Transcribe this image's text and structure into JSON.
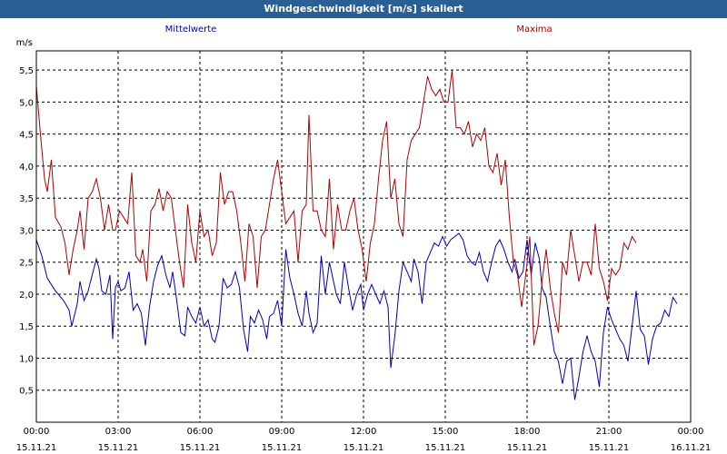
{
  "window": {
    "title": "Windgeschwindigkeit [m/s] skaliert"
  },
  "chart_data": {
    "type": "line",
    "ylabel": "m/s",
    "ylim": [
      0,
      5.8
    ],
    "y_ticks": [
      "0,5",
      "1,0",
      "1,5",
      "2,0",
      "2,5",
      "3,0",
      "3,5",
      "4,0",
      "4,5",
      "5,0",
      "5,5"
    ],
    "y_tick_values": [
      0.5,
      1.0,
      1.5,
      2.0,
      2.5,
      3.0,
      3.5,
      4.0,
      4.5,
      5.0,
      5.5
    ],
    "xlim_hours": [
      0,
      24
    ],
    "x_ticks": [
      {
        "time": "00:00",
        "date": "15.11.21"
      },
      {
        "time": "03:00",
        "date": "15.11.21"
      },
      {
        "time": "06:00",
        "date": "15.11.21"
      },
      {
        "time": "09:00",
        "date": "15.11.21"
      },
      {
        "time": "12:00",
        "date": "15.11.21"
      },
      {
        "time": "15:00",
        "date": "15.11.21"
      },
      {
        "time": "18:00",
        "date": "15.11.21"
      },
      {
        "time": "21:00",
        "date": "15.11.21"
      },
      {
        "time": "00:00",
        "date": "16.11.21"
      }
    ],
    "grid": true,
    "series": [
      {
        "name": "Mittelwerte",
        "color": "#0000c0",
        "points": [
          [
            0.0,
            2.85
          ],
          [
            0.2,
            2.6
          ],
          [
            0.4,
            2.25
          ],
          [
            0.7,
            2.05
          ],
          [
            1.0,
            1.9
          ],
          [
            1.2,
            1.75
          ],
          [
            1.3,
            1.5
          ],
          [
            1.5,
            1.85
          ],
          [
            1.6,
            2.2
          ],
          [
            1.75,
            1.9
          ],
          [
            1.9,
            2.05
          ],
          [
            2.05,
            2.3
          ],
          [
            2.2,
            2.55
          ],
          [
            2.3,
            2.4
          ],
          [
            2.4,
            2.05
          ],
          [
            2.55,
            2.0
          ],
          [
            2.7,
            2.3
          ],
          [
            2.8,
            1.3
          ],
          [
            2.9,
            2.1
          ],
          [
            3.0,
            2.2
          ],
          [
            3.1,
            2.05
          ],
          [
            3.25,
            2.1
          ],
          [
            3.4,
            2.35
          ],
          [
            3.55,
            1.75
          ],
          [
            3.7,
            1.85
          ],
          [
            3.85,
            1.7
          ],
          [
            4.0,
            1.2
          ],
          [
            4.15,
            1.8
          ],
          [
            4.3,
            2.2
          ],
          [
            4.45,
            2.45
          ],
          [
            4.6,
            2.6
          ],
          [
            4.75,
            2.3
          ],
          [
            4.9,
            2.1
          ],
          [
            5.0,
            2.35
          ],
          [
            5.15,
            1.9
          ],
          [
            5.3,
            1.4
          ],
          [
            5.45,
            1.35
          ],
          [
            5.55,
            1.8
          ],
          [
            5.7,
            1.65
          ],
          [
            5.85,
            1.55
          ],
          [
            6.0,
            1.8
          ],
          [
            6.15,
            1.5
          ],
          [
            6.3,
            1.6
          ],
          [
            6.45,
            1.3
          ],
          [
            6.55,
            1.25
          ],
          [
            6.7,
            1.5
          ],
          [
            6.85,
            2.25
          ],
          [
            7.0,
            2.1
          ],
          [
            7.15,
            2.15
          ],
          [
            7.3,
            2.35
          ],
          [
            7.45,
            2.1
          ],
          [
            7.6,
            1.45
          ],
          [
            7.75,
            1.1
          ],
          [
            7.85,
            1.65
          ],
          [
            8.0,
            1.55
          ],
          [
            8.15,
            1.75
          ],
          [
            8.3,
            1.6
          ],
          [
            8.45,
            1.3
          ],
          [
            8.55,
            1.65
          ],
          [
            8.7,
            1.7
          ],
          [
            8.85,
            1.9
          ],
          [
            9.0,
            1.5
          ],
          [
            9.15,
            2.7
          ],
          [
            9.3,
            2.25
          ],
          [
            9.45,
            2.0
          ],
          [
            9.6,
            1.7
          ],
          [
            9.75,
            1.5
          ],
          [
            9.9,
            2.05
          ],
          [
            10.0,
            1.7
          ],
          [
            10.15,
            1.4
          ],
          [
            10.3,
            1.55
          ],
          [
            10.45,
            2.6
          ],
          [
            10.6,
            2.0
          ],
          [
            10.75,
            2.5
          ],
          [
            10.9,
            2.2
          ],
          [
            11.0,
            2.0
          ],
          [
            11.15,
            1.85
          ],
          [
            11.3,
            2.5
          ],
          [
            11.45,
            2.1
          ],
          [
            11.6,
            1.75
          ],
          [
            11.75,
            2.0
          ],
          [
            11.9,
            2.15
          ],
          [
            12.0,
            1.75
          ],
          [
            12.15,
            2.0
          ],
          [
            12.3,
            2.15
          ],
          [
            12.45,
            2.0
          ],
          [
            12.6,
            1.85
          ],
          [
            12.75,
            2.05
          ],
          [
            12.9,
            1.8
          ],
          [
            13.0,
            0.85
          ],
          [
            13.15,
            1.35
          ],
          [
            13.3,
            2.05
          ],
          [
            13.45,
            2.5
          ],
          [
            13.6,
            2.35
          ],
          [
            13.75,
            2.2
          ],
          [
            13.85,
            2.55
          ],
          [
            14.0,
            2.35
          ],
          [
            14.15,
            1.85
          ],
          [
            14.3,
            2.5
          ],
          [
            14.45,
            2.65
          ],
          [
            14.6,
            2.8
          ],
          [
            14.75,
            2.75
          ],
          [
            14.9,
            2.9
          ],
          [
            15.05,
            2.75
          ],
          [
            15.2,
            2.85
          ],
          [
            15.35,
            2.9
          ],
          [
            15.5,
            2.95
          ],
          [
            15.65,
            2.85
          ],
          [
            15.8,
            2.6
          ],
          [
            15.95,
            2.5
          ],
          [
            16.1,
            2.45
          ],
          [
            16.25,
            2.65
          ],
          [
            16.4,
            2.35
          ],
          [
            16.55,
            2.2
          ],
          [
            16.7,
            2.5
          ],
          [
            16.85,
            2.75
          ],
          [
            17.0,
            2.85
          ],
          [
            17.15,
            2.7
          ],
          [
            17.3,
            2.5
          ],
          [
            17.45,
            2.35
          ],
          [
            17.55,
            2.55
          ],
          [
            17.7,
            2.25
          ],
          [
            17.85,
            2.35
          ],
          [
            18.0,
            2.85
          ],
          [
            18.15,
            2.3
          ],
          [
            18.3,
            2.8
          ],
          [
            18.45,
            2.55
          ],
          [
            18.55,
            2.1
          ],
          [
            18.7,
            1.95
          ],
          [
            18.85,
            1.5
          ],
          [
            19.0,
            1.1
          ],
          [
            19.15,
            0.95
          ],
          [
            19.3,
            0.6
          ],
          [
            19.45,
            0.95
          ],
          [
            19.6,
            1.0
          ],
          [
            19.75,
            0.35
          ],
          [
            19.9,
            0.7
          ],
          [
            20.05,
            1.1
          ],
          [
            20.2,
            1.35
          ],
          [
            20.35,
            1.1
          ],
          [
            20.5,
            0.95
          ],
          [
            20.65,
            0.55
          ],
          [
            20.8,
            1.4
          ],
          [
            20.95,
            1.8
          ],
          [
            21.1,
            1.6
          ],
          [
            21.25,
            1.45
          ],
          [
            21.4,
            1.3
          ],
          [
            21.55,
            1.2
          ],
          [
            21.7,
            0.95
          ],
          [
            21.85,
            1.5
          ],
          [
            22.0,
            2.05
          ],
          [
            22.15,
            1.45
          ],
          [
            22.3,
            1.35
          ],
          [
            22.45,
            0.9
          ],
          [
            22.6,
            1.3
          ],
          [
            22.75,
            1.5
          ],
          [
            22.9,
            1.55
          ],
          [
            23.05,
            1.75
          ],
          [
            23.2,
            1.65
          ],
          [
            23.35,
            1.95
          ],
          [
            23.5,
            1.85
          ]
        ]
      },
      {
        "name": "Maxima",
        "color": "#b00000",
        "points": [
          [
            0.0,
            5.25
          ],
          [
            0.15,
            4.5
          ],
          [
            0.3,
            3.8
          ],
          [
            0.4,
            3.6
          ],
          [
            0.55,
            4.1
          ],
          [
            0.7,
            3.2
          ],
          [
            0.9,
            3.05
          ],
          [
            1.05,
            2.8
          ],
          [
            1.2,
            2.3
          ],
          [
            1.35,
            2.7
          ],
          [
            1.5,
            3.0
          ],
          [
            1.6,
            3.3
          ],
          [
            1.75,
            2.7
          ],
          [
            1.9,
            3.5
          ],
          [
            2.05,
            3.6
          ],
          [
            2.2,
            3.8
          ],
          [
            2.35,
            3.5
          ],
          [
            2.5,
            3.0
          ],
          [
            2.65,
            3.4
          ],
          [
            2.8,
            3.0
          ],
          [
            2.9,
            3.0
          ],
          [
            3.05,
            3.3
          ],
          [
            3.2,
            3.2
          ],
          [
            3.35,
            3.1
          ],
          [
            3.5,
            3.9
          ],
          [
            3.65,
            2.6
          ],
          [
            3.8,
            2.5
          ],
          [
            3.9,
            2.7
          ],
          [
            4.05,
            2.2
          ],
          [
            4.2,
            3.3
          ],
          [
            4.35,
            3.4
          ],
          [
            4.5,
            3.65
          ],
          [
            4.65,
            3.3
          ],
          [
            4.8,
            3.6
          ],
          [
            4.95,
            3.5
          ],
          [
            5.1,
            3.0
          ],
          [
            5.25,
            2.5
          ],
          [
            5.4,
            2.1
          ],
          [
            5.55,
            3.4
          ],
          [
            5.7,
            2.8
          ],
          [
            5.85,
            2.5
          ],
          [
            6.0,
            3.3
          ],
          [
            6.15,
            2.9
          ],
          [
            6.3,
            3.0
          ],
          [
            6.45,
            2.6
          ],
          [
            6.6,
            2.8
          ],
          [
            6.75,
            3.9
          ],
          [
            6.9,
            3.4
          ],
          [
            7.05,
            3.6
          ],
          [
            7.2,
            3.6
          ],
          [
            7.35,
            3.3
          ],
          [
            7.5,
            2.8
          ],
          [
            7.65,
            2.2
          ],
          [
            7.8,
            3.1
          ],
          [
            7.95,
            2.9
          ],
          [
            8.1,
            2.1
          ],
          [
            8.25,
            2.9
          ],
          [
            8.4,
            3.0
          ],
          [
            8.55,
            3.4
          ],
          [
            8.7,
            3.8
          ],
          [
            8.85,
            4.1
          ],
          [
            9.0,
            3.6
          ],
          [
            9.15,
            3.1
          ],
          [
            9.3,
            3.2
          ],
          [
            9.45,
            3.3
          ],
          [
            9.6,
            2.5
          ],
          [
            9.75,
            3.3
          ],
          [
            9.9,
            3.4
          ],
          [
            10.0,
            4.8
          ],
          [
            10.15,
            3.3
          ],
          [
            10.3,
            3.3
          ],
          [
            10.45,
            3.0
          ],
          [
            10.6,
            2.9
          ],
          [
            10.75,
            3.8
          ],
          [
            10.9,
            2.7
          ],
          [
            11.05,
            3.4
          ],
          [
            11.2,
            3.0
          ],
          [
            11.35,
            3.0
          ],
          [
            11.5,
            3.3
          ],
          [
            11.65,
            3.5
          ],
          [
            11.8,
            3.0
          ],
          [
            11.95,
            2.7
          ],
          [
            12.1,
            2.2
          ],
          [
            12.25,
            2.8
          ],
          [
            12.4,
            3.1
          ],
          [
            12.55,
            3.8
          ],
          [
            12.7,
            4.4
          ],
          [
            12.85,
            4.7
          ],
          [
            13.0,
            3.5
          ],
          [
            13.15,
            3.8
          ],
          [
            13.3,
            3.1
          ],
          [
            13.45,
            2.9
          ],
          [
            13.6,
            4.1
          ],
          [
            13.75,
            4.4
          ],
          [
            13.9,
            4.5
          ],
          [
            14.05,
            4.6
          ],
          [
            14.2,
            5.0
          ],
          [
            14.35,
            5.4
          ],
          [
            14.5,
            5.2
          ],
          [
            14.65,
            5.1
          ],
          [
            14.8,
            5.2
          ],
          [
            14.95,
            5.0
          ],
          [
            15.1,
            5.0
          ],
          [
            15.25,
            5.5
          ],
          [
            15.4,
            4.6
          ],
          [
            15.55,
            4.6
          ],
          [
            15.7,
            4.5
          ],
          [
            15.85,
            4.7
          ],
          [
            16.0,
            4.3
          ],
          [
            16.15,
            4.5
          ],
          [
            16.3,
            4.4
          ],
          [
            16.45,
            4.6
          ],
          [
            16.6,
            4.0
          ],
          [
            16.75,
            3.9
          ],
          [
            16.9,
            4.2
          ],
          [
            17.05,
            3.7
          ],
          [
            17.2,
            4.1
          ],
          [
            17.35,
            3.2
          ],
          [
            17.5,
            2.5
          ],
          [
            17.65,
            2.3
          ],
          [
            17.8,
            1.8
          ],
          [
            17.95,
            2.3
          ],
          [
            18.1,
            2.9
          ],
          [
            18.25,
            1.2
          ],
          [
            18.4,
            1.5
          ],
          [
            18.55,
            2.2
          ],
          [
            18.7,
            2.7
          ],
          [
            18.85,
            2.1
          ],
          [
            19.0,
            1.7
          ],
          [
            19.15,
            1.4
          ],
          [
            19.3,
            2.5
          ],
          [
            19.45,
            2.3
          ],
          [
            19.6,
            3.0
          ],
          [
            19.75,
            2.6
          ],
          [
            19.9,
            2.2
          ],
          [
            20.05,
            2.5
          ],
          [
            20.2,
            2.5
          ],
          [
            20.35,
            2.3
          ],
          [
            20.5,
            3.1
          ],
          [
            20.65,
            2.4
          ],
          [
            20.8,
            2.2
          ],
          [
            20.95,
            1.9
          ],
          [
            21.1,
            2.4
          ],
          [
            21.25,
            2.3
          ],
          [
            21.4,
            2.4
          ],
          [
            21.55,
            2.8
          ],
          [
            21.7,
            2.7
          ],
          [
            21.85,
            2.9
          ],
          [
            22.0,
            2.8
          ]
        ]
      }
    ]
  }
}
